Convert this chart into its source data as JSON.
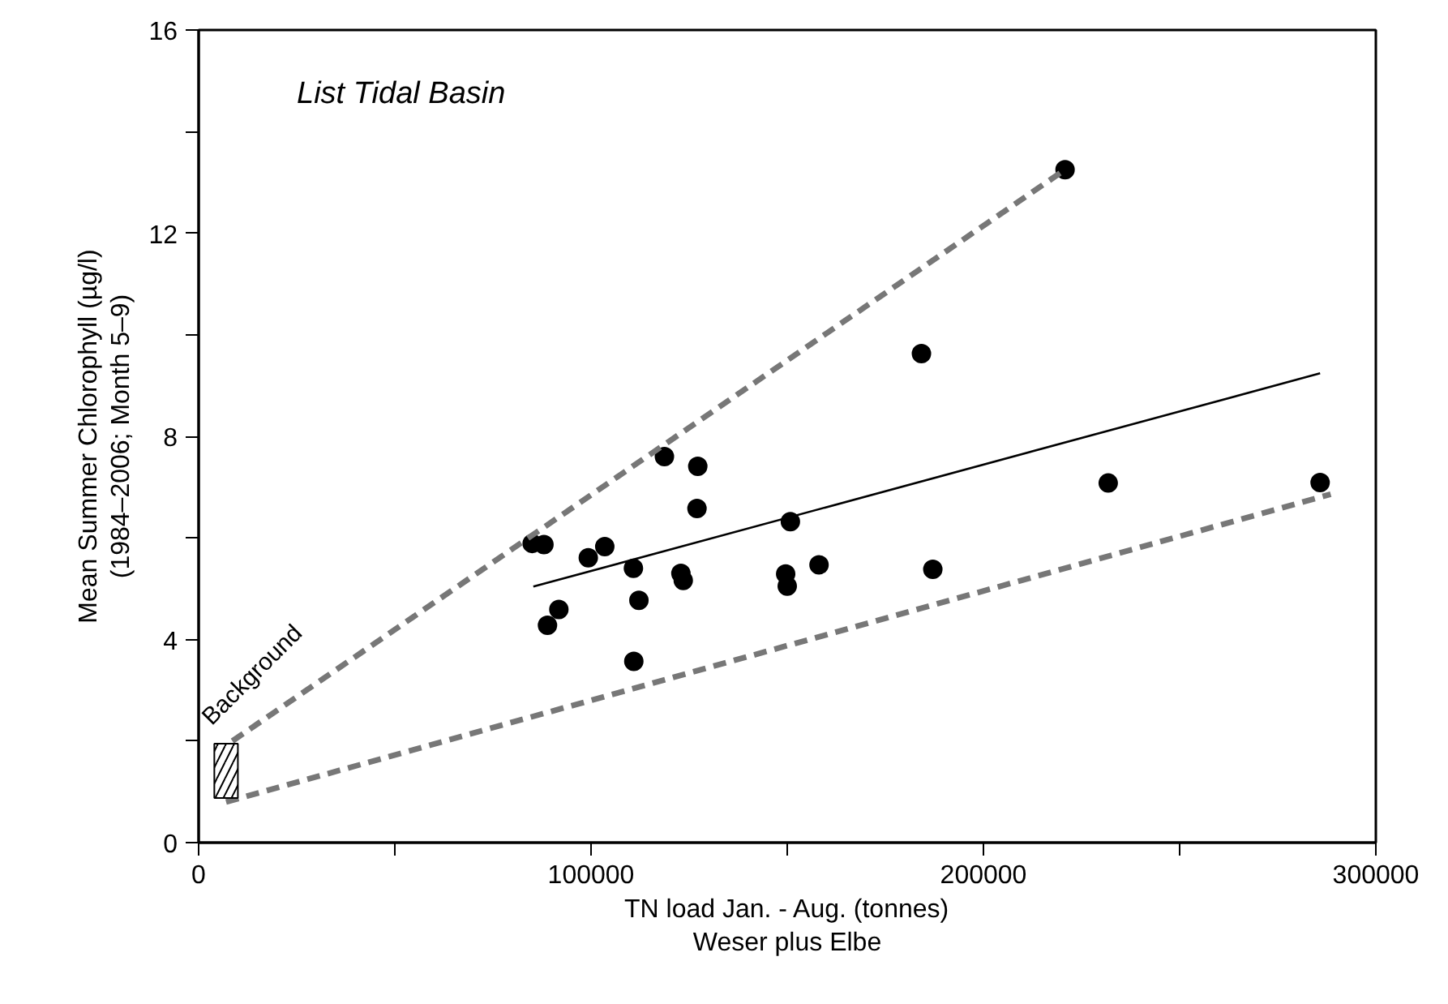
{
  "chart_data": {
    "type": "scatter",
    "xlabel": "TN load Jan. - Aug. (tonnes)\nWeser plus Elbe",
    "ylabel": "Mean Summer Chlorophyll (µg/l)\n(1984–2006; Month 5–9)",
    "annotations": [
      "List Tidal Basin",
      "Background"
    ],
    "xlim": [
      0,
      300000
    ],
    "ylim": [
      0,
      16
    ],
    "xticks": [
      0,
      {
        "value": 50000,
        "label": null
      },
      100000,
      {
        "value": 150000,
        "label": null
      },
      200000,
      {
        "value": 250000,
        "label": null
      },
      300000
    ],
    "yticks": [
      0,
      {
        "value": 2,
        "label": null
      },
      4,
      {
        "value": 6,
        "label": null
      },
      8,
      {
        "value": 10,
        "label": null
      },
      12,
      {
        "value": 14,
        "label": null
      },
      16
    ],
    "grid": false,
    "series": [
      {
        "marker": "circle",
        "color": "#000000",
        "x": [
          85000,
          88000,
          99300,
          103500,
          118700,
          127200,
          127000,
          110800,
          112200,
          91800,
          88900,
          110900,
          122900,
          123500,
          150800,
          149600,
          150000,
          158100,
          187100,
          184200,
          220800,
          231800,
          285800
        ],
        "values": [
          5.89,
          5.87,
          5.61,
          5.83,
          7.6,
          7.41,
          6.58,
          5.4,
          4.77,
          4.59,
          4.28,
          3.57,
          5.3,
          5.16,
          6.32,
          5.29,
          5.05,
          5.47,
          5.38,
          9.63,
          13.25,
          7.08,
          7.09
        ]
      },
      {
        "type": "line",
        "color": "#000000",
        "line_style": "solid",
        "x": [
          85300,
          285800
        ],
        "values": [
          5.04,
          9.24
        ]
      },
      {
        "type": "line",
        "color": "#777777",
        "line_style": "dashed",
        "x": [
          8600,
          220800
        ],
        "values": [
          2.0,
          13.25
        ]
      },
      {
        "type": "line",
        "color": "#777777",
        "line_style": "dashed",
        "x": [
          7000,
          288500
        ],
        "values": [
          0.8,
          6.86
        ]
      },
      {
        "type": "bar",
        "color": "#000000",
        "x": [
          7000
        ],
        "base": [
          0.88
        ],
        "values": [
          1.07
        ]
      }
    ]
  }
}
